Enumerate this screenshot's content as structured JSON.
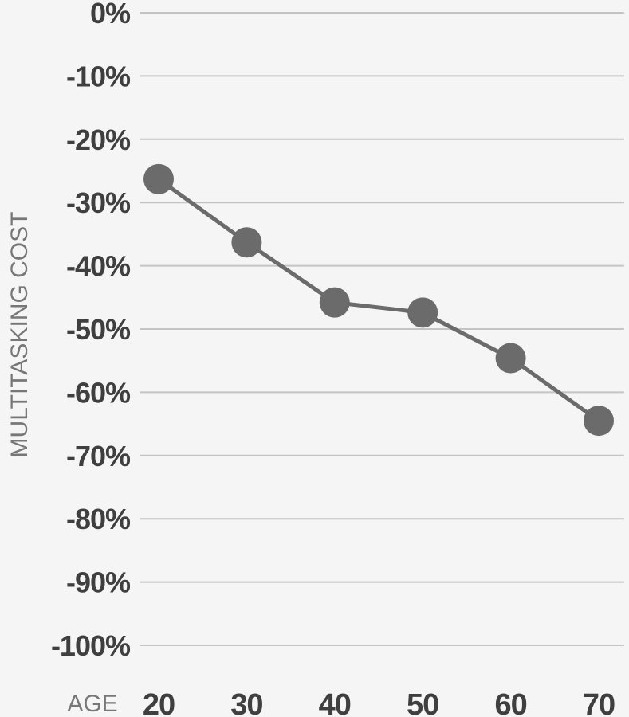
{
  "chart_data": {
    "type": "line",
    "xlabel": "AGE",
    "ylabel": "MULTITASKING COST",
    "categories": [
      "20",
      "30",
      "40",
      "50",
      "60",
      "70"
    ],
    "x": [
      20,
      30,
      40,
      50,
      60,
      70
    ],
    "series": [
      {
        "values": [
          -26.3,
          -36.3,
          -45.8,
          -47.4,
          -54.6,
          -64.5
        ]
      }
    ],
    "ylim": [
      -100,
      0
    ],
    "yticks": [
      0,
      -10,
      -20,
      -30,
      -40,
      -50,
      -60,
      -70,
      -80,
      -90,
      -100
    ],
    "ytick_labels": [
      "0%",
      "-10%",
      "-20%",
      "-30%",
      "-40%",
      "-50%",
      "-60%",
      "-70%",
      "-80%",
      "-90%",
      "-100%"
    ],
    "grid": true,
    "legend": "none",
    "colors": {
      "series": "#6b6b6b",
      "grid": "#c4c4c4",
      "text": "#3f3f3f",
      "axis_label": "#777777",
      "background": "#f5f5f5"
    }
  }
}
